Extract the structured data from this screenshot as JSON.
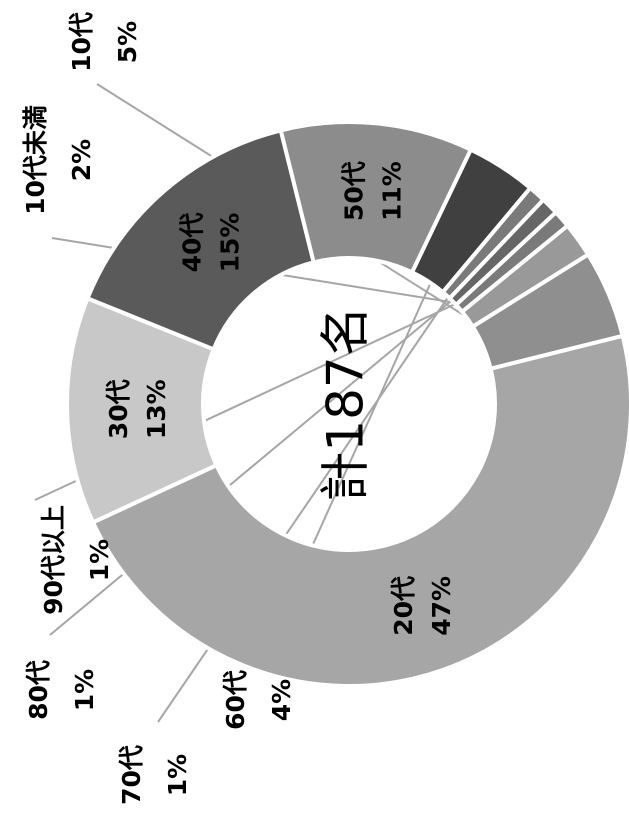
{
  "chart_data": {
    "type": "pie",
    "variant": "donut",
    "center_text": "計187名",
    "segments": [
      {
        "label": "20代",
        "value": 47,
        "value_label": "47%",
        "color": "#a6a6a6",
        "label_position": "inside"
      },
      {
        "label": "30代",
        "value": 13,
        "value_label": "13%",
        "color": "#c8c8c8",
        "label_position": "inside"
      },
      {
        "label": "40代",
        "value": 15,
        "value_label": "15%",
        "color": "#5a5a5a",
        "label_position": "inside"
      },
      {
        "label": "50代",
        "value": 11,
        "value_label": "11%",
        "color": "#8c8c8c",
        "label_position": "inside"
      },
      {
        "label": "60代",
        "value": 4,
        "value_label": "4%",
        "color": "#404040",
        "label_position": "outside"
      },
      {
        "label": "70代",
        "value": 1,
        "value_label": "1%",
        "color": "#7a7a7a",
        "label_position": "outside"
      },
      {
        "label": "80代",
        "value": 1,
        "value_label": "1%",
        "color": "#666666",
        "label_position": "outside"
      },
      {
        "label": "90代以上",
        "value": 1,
        "value_label": "1%",
        "color": "#7a7a7a",
        "label_position": "outside"
      },
      {
        "label": "10代未満",
        "value": 2,
        "value_label": "2%",
        "color": "#999999",
        "label_position": "outside"
      },
      {
        "label": "10代",
        "value": 5,
        "value_label": "5%",
        "color": "#8f8f8f",
        "label_position": "outside"
      }
    ]
  }
}
